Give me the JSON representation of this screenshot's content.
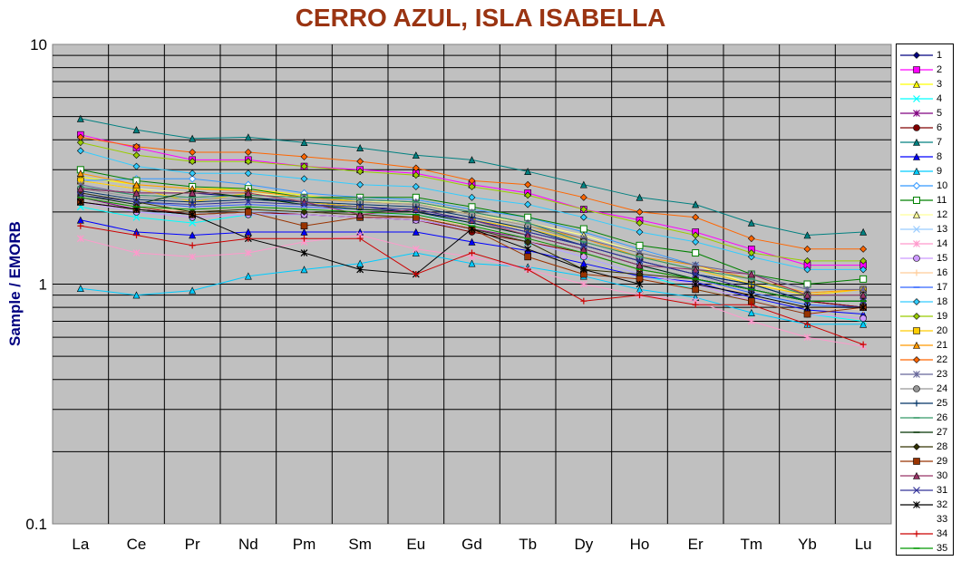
{
  "chart_data": {
    "type": "line",
    "title": "CERRO AZUL, ISLA ISABELLA",
    "ylabel": "Sample / EMORB",
    "xlabel": "",
    "yscale": "log",
    "ylim": [
      0.1,
      10
    ],
    "yticks": [
      "0.1",
      "1",
      "10"
    ],
    "grid": true,
    "legend": "right",
    "categories": [
      "La",
      "Ce",
      "Pr",
      "Nd",
      "Pm",
      "Sm",
      "Eu",
      "Gd",
      "Tb",
      "Dy",
      "Ho",
      "Er",
      "Tm",
      "Yb",
      "Lu"
    ],
    "series": [
      {
        "name": "1",
        "color": "#000080",
        "marker": "diamond",
        "values": [
          2.5,
          2.4,
          2.4,
          2.3,
          2.2,
          2.1,
          2.0,
          1.85,
          1.65,
          1.45,
          1.25,
          1.1,
          1.0,
          0.85,
          0.8
        ]
      },
      {
        "name": "2",
        "color": "#ff00ff",
        "marker": "square",
        "values": [
          4.2,
          3.7,
          3.3,
          3.3,
          3.1,
          3.0,
          2.9,
          2.6,
          2.4,
          2.05,
          1.85,
          1.65,
          1.4,
          1.2,
          1.2
        ]
      },
      {
        "name": "3",
        "color": "#ffff00",
        "marker": "triangle",
        "values": [
          2.8,
          2.6,
          2.5,
          2.5,
          2.35,
          2.2,
          2.2,
          1.95,
          1.8,
          1.6,
          1.35,
          1.2,
          1.0,
          0.9,
          0.95
        ]
      },
      {
        "name": "4",
        "color": "#00ffff",
        "marker": "x",
        "values": [
          2.1,
          1.9,
          1.8,
          1.95,
          1.95,
          1.9,
          1.85,
          1.7,
          1.5,
          1.3,
          1.1,
          0.95,
          0.85,
          0.75,
          0.7
        ]
      },
      {
        "name": "5",
        "color": "#800080",
        "marker": "star",
        "values": [
          2.3,
          2.05,
          1.95,
          2.0,
          1.95,
          1.9,
          1.85,
          1.7,
          1.55,
          1.35,
          1.15,
          1.05,
          0.95,
          0.85,
          0.8
        ]
      },
      {
        "name": "6",
        "color": "#800000",
        "marker": "circle",
        "values": [
          2.3,
          2.1,
          1.95,
          2.0,
          1.95,
          1.9,
          1.85,
          1.65,
          1.5,
          1.35,
          1.15,
          1.05,
          0.95,
          0.85,
          0.8
        ]
      },
      {
        "name": "7",
        "color": "#008080",
        "marker": "triangle",
        "values": [
          4.9,
          4.4,
          4.05,
          4.1,
          3.9,
          3.7,
          3.45,
          3.3,
          2.95,
          2.6,
          2.3,
          2.15,
          1.8,
          1.6,
          1.65
        ]
      },
      {
        "name": "8",
        "color": "#0000ff",
        "marker": "triangle",
        "values": [
          1.85,
          1.65,
          1.6,
          1.65,
          1.65,
          1.65,
          1.65,
          1.5,
          1.38,
          1.22,
          1.08,
          1.02,
          0.88,
          0.78,
          0.75
        ]
      },
      {
        "name": "9",
        "color": "#00ccff",
        "marker": "triangle",
        "values": [
          0.96,
          0.9,
          0.94,
          1.08,
          1.15,
          1.22,
          1.35,
          1.22,
          1.18,
          1.08,
          0.95,
          0.88,
          0.76,
          0.68,
          0.68
        ]
      },
      {
        "name": "10",
        "color": "#3399ff",
        "marker": "diamond-open",
        "values": [
          2.7,
          2.75,
          2.75,
          2.6,
          2.4,
          2.3,
          2.25,
          2.05,
          1.9,
          1.65,
          1.4,
          1.2,
          1.05,
          0.9,
          0.9
        ]
      },
      {
        "name": "11",
        "color": "#008000",
        "marker": "square-open",
        "values": [
          3.0,
          2.7,
          2.55,
          2.5,
          2.3,
          2.3,
          2.3,
          2.1,
          1.9,
          1.7,
          1.45,
          1.35,
          1.1,
          1.0,
          1.05
        ]
      },
      {
        "name": "12",
        "color": "#ffff99",
        "marker": "triangle",
        "values": [
          2.7,
          2.5,
          2.4,
          2.4,
          2.3,
          2.2,
          2.2,
          1.95,
          1.8,
          1.6,
          1.35,
          1.2,
          1.0,
          0.92,
          0.95
        ]
      },
      {
        "name": "13",
        "color": "#99ccff",
        "marker": "x",
        "values": [
          2.2,
          2.0,
          1.95,
          2.0,
          2.0,
          1.95,
          1.95,
          1.8,
          1.6,
          1.4,
          1.2,
          1.05,
          0.9,
          0.82,
          0.78
        ]
      },
      {
        "name": "14",
        "color": "#ff99cc",
        "marker": "star",
        "values": [
          1.55,
          1.35,
          1.3,
          1.35,
          1.5,
          1.6,
          1.4,
          1.3,
          1.15,
          1.0,
          0.9,
          0.85,
          0.7,
          0.6,
          0.55
        ]
      },
      {
        "name": "15",
        "color": "#cc99ff",
        "marker": "circle",
        "values": [
          2.2,
          2.0,
          1.9,
          1.95,
          1.95,
          1.9,
          1.85,
          1.7,
          1.5,
          1.3,
          1.1,
          1.0,
          0.85,
          0.75,
          0.72
        ]
      },
      {
        "name": "16",
        "color": "#ffcc99",
        "marker": "plus",
        "values": [
          2.3,
          2.1,
          2.0,
          2.05,
          2.0,
          1.95,
          1.9,
          1.75,
          1.55,
          1.35,
          1.15,
          1.05,
          0.9,
          0.8,
          0.78
        ]
      },
      {
        "name": "17",
        "color": "#3366ff",
        "marker": "dash",
        "values": [
          2.4,
          2.2,
          2.1,
          2.15,
          2.1,
          2.05,
          2.0,
          1.8,
          1.6,
          1.4,
          1.2,
          1.05,
          0.92,
          0.82,
          0.8
        ]
      },
      {
        "name": "18",
        "color": "#33ccff",
        "marker": "diamond",
        "values": [
          3.6,
          3.1,
          2.9,
          2.9,
          2.75,
          2.6,
          2.55,
          2.3,
          2.15,
          1.9,
          1.65,
          1.5,
          1.3,
          1.15,
          1.15
        ]
      },
      {
        "name": "19",
        "color": "#99cc00",
        "marker": "diamond",
        "values": [
          3.9,
          3.45,
          3.25,
          3.25,
          3.1,
          2.95,
          2.85,
          2.55,
          2.35,
          2.05,
          1.8,
          1.6,
          1.35,
          1.25,
          1.25
        ]
      },
      {
        "name": "20",
        "color": "#ffcc00",
        "marker": "square",
        "values": [
          2.7,
          2.5,
          2.2,
          2.4,
          2.2,
          2.1,
          2.05,
          1.85,
          1.7,
          1.5,
          1.3,
          1.15,
          1.0,
          0.9,
          0.95
        ]
      },
      {
        "name": "21",
        "color": "#ff9900",
        "marker": "triangle",
        "values": [
          2.9,
          2.6,
          2.5,
          2.45,
          2.3,
          2.2,
          2.15,
          1.95,
          1.75,
          1.55,
          1.3,
          1.2,
          1.05,
          0.92,
          0.95
        ]
      },
      {
        "name": "22",
        "color": "#ff6600",
        "marker": "diamond",
        "values": [
          4.1,
          3.75,
          3.55,
          3.55,
          3.4,
          3.25,
          3.05,
          2.7,
          2.6,
          2.3,
          2.0,
          1.9,
          1.55,
          1.4,
          1.4
        ]
      },
      {
        "name": "23",
        "color": "#666699",
        "marker": "star",
        "values": [
          2.6,
          2.35,
          2.3,
          2.35,
          2.3,
          2.25,
          2.2,
          2.0,
          1.8,
          1.55,
          1.35,
          1.2,
          1.1,
          0.95,
          0.95
        ]
      },
      {
        "name": "24",
        "color": "#969696",
        "marker": "circle",
        "values": [
          2.5,
          2.3,
          2.25,
          2.3,
          2.25,
          2.2,
          2.15,
          1.95,
          1.75,
          1.5,
          1.3,
          1.15,
          1.05,
          0.9,
          0.9
        ]
      },
      {
        "name": "25",
        "color": "#003366",
        "marker": "plus",
        "values": [
          2.45,
          2.25,
          2.2,
          2.25,
          2.2,
          2.15,
          2.1,
          1.9,
          1.7,
          1.45,
          1.25,
          1.1,
          1.0,
          0.85,
          0.85
        ]
      },
      {
        "name": "26",
        "color": "#339966",
        "marker": "dash",
        "values": [
          2.55,
          2.35,
          2.3,
          2.35,
          2.3,
          2.25,
          2.2,
          2.0,
          1.8,
          1.5,
          1.3,
          1.15,
          1.05,
          0.9,
          0.9
        ]
      },
      {
        "name": "27",
        "color": "#003300",
        "marker": "dash",
        "values": [
          2.35,
          2.15,
          2.45,
          2.3,
          2.15,
          2.05,
          2.0,
          1.8,
          1.6,
          1.4,
          1.2,
          1.05,
          0.95,
          0.85,
          0.85
        ]
      },
      {
        "name": "28",
        "color": "#333300",
        "marker": "diamond",
        "values": [
          2.4,
          2.2,
          2.0,
          2.05,
          2.0,
          1.95,
          1.9,
          1.7,
          1.5,
          1.15,
          1.1,
          1.05,
          0.95,
          0.85,
          0.85
        ]
      },
      {
        "name": "29",
        "color": "#993300",
        "marker": "square",
        "values": [
          2.2,
          2.05,
          1.95,
          2.0,
          1.75,
          1.9,
          1.9,
          1.7,
          1.3,
          1.1,
          1.05,
          0.95,
          0.85,
          0.75,
          0.8
        ]
      },
      {
        "name": "30",
        "color": "#993366",
        "marker": "triangle",
        "values": [
          2.5,
          2.4,
          2.4,
          2.4,
          2.2,
          1.95,
          2.05,
          1.85,
          1.6,
          1.4,
          1.2,
          1.15,
          1.1,
          0.9,
          0.9
        ]
      },
      {
        "name": "31",
        "color": "#333399",
        "marker": "x",
        "values": [
          2.35,
          2.2,
          2.15,
          2.2,
          2.15,
          2.1,
          2.05,
          1.85,
          1.65,
          1.45,
          1.25,
          1.1,
          0.95,
          0.85,
          0.85
        ]
      },
      {
        "name": "32",
        "color": "#000000",
        "marker": "star",
        "values": [
          2.2,
          2.05,
          1.95,
          1.55,
          1.35,
          1.15,
          1.1,
          1.7,
          1.4,
          1.15,
          1.0,
          1.0,
          0.9,
          0.8,
          0.8
        ]
      },
      {
        "name": "33",
        "color": "#ffffff",
        "marker": "none",
        "values": [
          null,
          null,
          null,
          null,
          null,
          null,
          null,
          null,
          null,
          null,
          null,
          null,
          null,
          null,
          null
        ]
      },
      {
        "name": "34",
        "color": "#cc0000",
        "marker": "plus",
        "values": [
          1.75,
          1.6,
          1.45,
          1.55,
          1.55,
          1.55,
          1.1,
          1.35,
          1.15,
          0.85,
          0.9,
          0.82,
          0.82,
          0.68,
          0.56
        ]
      },
      {
        "name": "35",
        "color": "#009900",
        "marker": "dash",
        "values": [
          2.3,
          2.1,
          2.05,
          2.1,
          2.05,
          2.0,
          1.95,
          1.75,
          1.55,
          1.35,
          1.15,
          1.05,
          0.95,
          0.85,
          0.85
        ]
      }
    ]
  }
}
